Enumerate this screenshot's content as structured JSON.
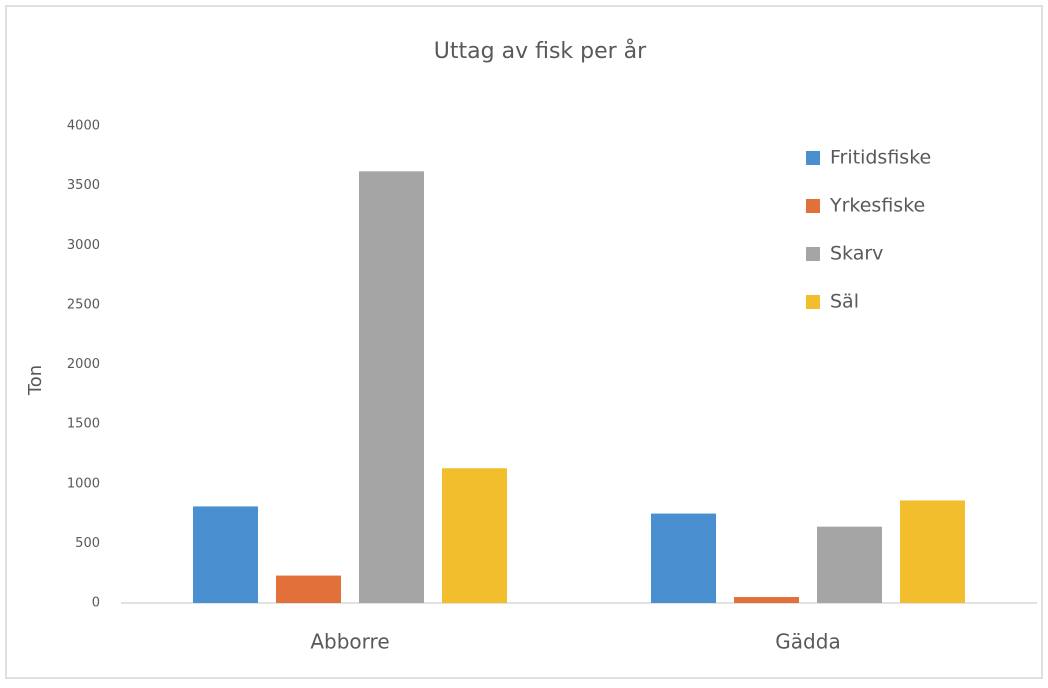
{
  "chart_data": {
    "type": "bar",
    "title": "Uttag av fisk per år",
    "y_label": "Ton",
    "categories": [
      "Abborre",
      "Gädda"
    ],
    "series": [
      {
        "name": "Fritidsfiske",
        "color": "#4a90d0",
        "values": [
          810,
          750
        ]
      },
      {
        "name": "Yrkesfiske",
        "color": "#e2703a",
        "values": [
          230,
          50
        ]
      },
      {
        "name": "Skarv",
        "color": "#a5a5a5",
        "values": [
          3620,
          640
        ]
      },
      {
        "name": "Säl",
        "color": "#f2be2e",
        "values": [
          1130,
          860
        ]
      }
    ],
    "ylim": [
      0,
      4000
    ],
    "yticks": [
      0,
      500,
      1000,
      1500,
      2000,
      2500,
      3000,
      3500,
      4000
    ],
    "grid": false,
    "legend": "upper right"
  }
}
